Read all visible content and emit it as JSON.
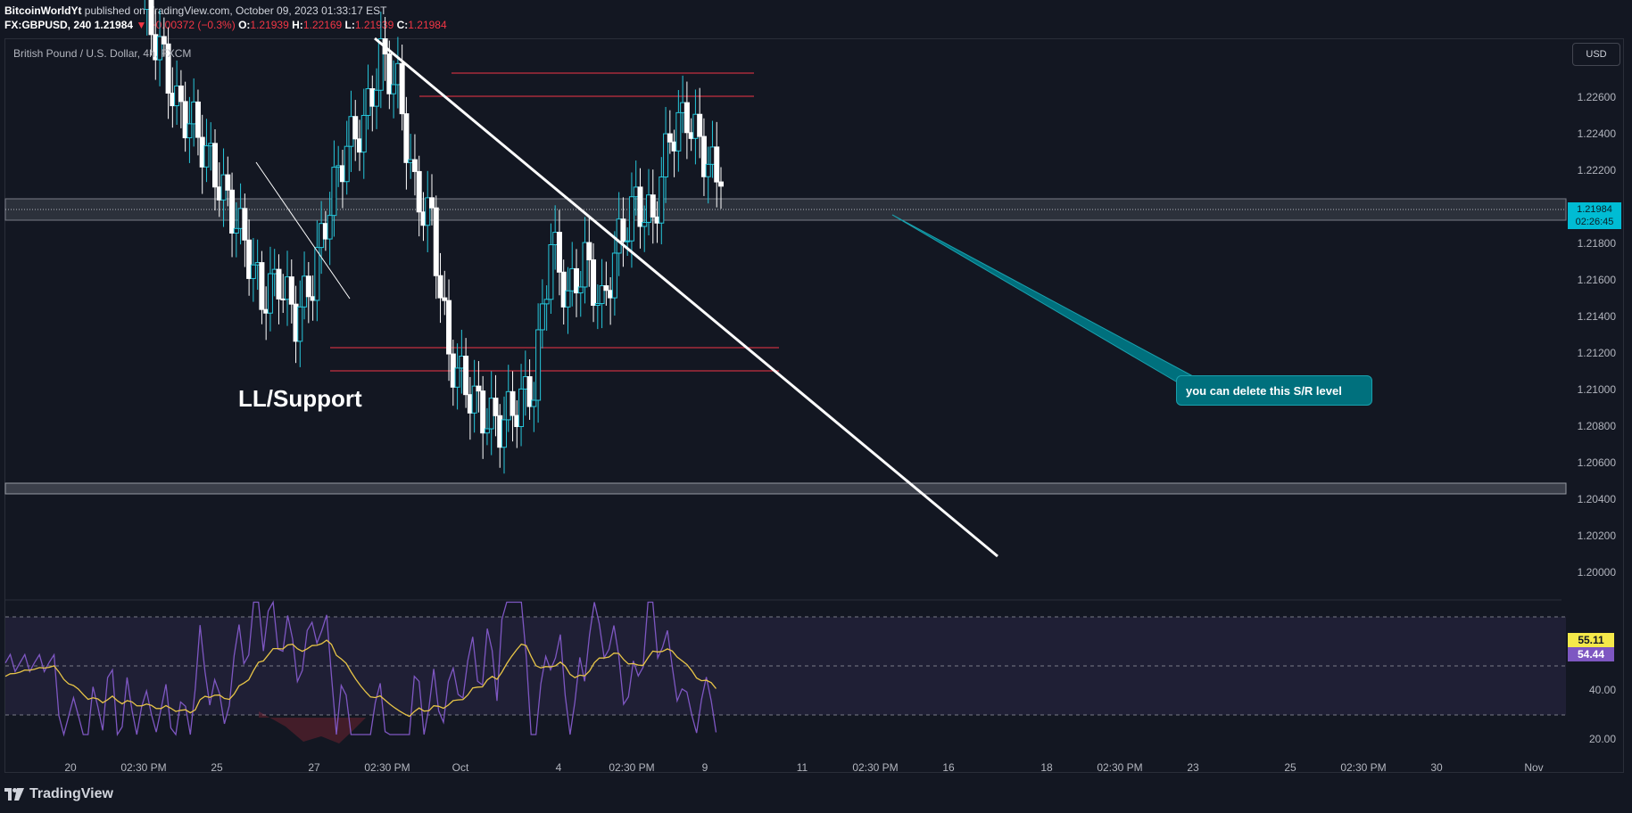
{
  "header": {
    "publisher": "BitcoinWorldYt",
    "published_text": "published on TradingView.com, October 09, 2023 01:33:17 EST",
    "symbol": "FX:GBPUSD, 240",
    "last": "1.21984",
    "change": "▼ −0.00372 (−0.3%)",
    "o_label": "O:",
    "o": "1.21939",
    "h_label": "H:",
    "h": "1.22169",
    "l_label": "L:",
    "l": "1.21939",
    "c_label": "C:",
    "c": "1.21984"
  },
  "chart": {
    "legend": "British Pound / U.S. Dollar, 4h, FXCM",
    "currency_button": "USD",
    "price_tag_value": "1.21984",
    "price_tag_countdown": "02:26:45",
    "y_ticks": [
      "1.22600",
      "1.22400",
      "1.22200",
      "1.21800",
      "1.21600",
      "1.21400",
      "1.21200",
      "1.21000",
      "1.20800",
      "1.20600",
      "1.20400",
      "1.20200",
      "1.20000"
    ],
    "x_ticks": [
      "20",
      "02:30 PM",
      "25",
      "27",
      "02:30 PM",
      "Oct",
      "4",
      "02:30 PM",
      "9",
      "11",
      "02:30 PM",
      "16",
      "18",
      "02:30 PM",
      "23",
      "25",
      "02:30 PM",
      "30",
      "Nov"
    ],
    "annotation_text": "LL/Support",
    "callout_text": "you can delete this S/R level",
    "colors": {
      "background": "#131722",
      "up": "#26c6da",
      "down": "#ffffff",
      "sr_line": "#f23645",
      "trendline": "#ffffff",
      "callout": "#00707d",
      "rsi": "#7e57c2",
      "rsi_ma": "#e8c547"
    }
  },
  "rsi": {
    "value_tag": "55.11",
    "ma_tag": "54.44",
    "y_ticks": [
      "40.00",
      "20.00"
    ]
  },
  "footer": {
    "brand": "TradingView"
  },
  "chart_data": {
    "type": "line",
    "title": "British Pound / U.S. Dollar, 4h, FXCM",
    "xlabel": "",
    "ylabel": "",
    "ylim": [
      1.199,
      1.2275
    ],
    "x_ticks": [
      "20",
      "25",
      "27",
      "Oct",
      "4",
      "9",
      "11",
      "16",
      "18",
      "23",
      "25",
      "30",
      "Nov"
    ],
    "series": [
      {
        "values": [
          1.229,
          1.227,
          1.224,
          1.223,
          1.221,
          1.219,
          1.217,
          1.214,
          1.215,
          1.213,
          1.215,
          1.219,
          1.222,
          1.223,
          1.2265,
          1.225,
          1.2195,
          1.218,
          1.211,
          1.2095,
          1.208,
          1.2075,
          1.2085,
          1.2095,
          1.217,
          1.214,
          1.216,
          1.2135,
          1.217,
          1.219,
          1.218,
          1.2225,
          1.2235,
          1.2215,
          1.21984
        ]
      }
    ],
    "horizontal_levels": [
      1.2271,
      1.226,
      1.2123,
      1.211
    ],
    "sr_zones": [
      [
        1.2194,
        1.2206
      ],
      [
        1.2044,
        1.205
      ]
    ]
  }
}
